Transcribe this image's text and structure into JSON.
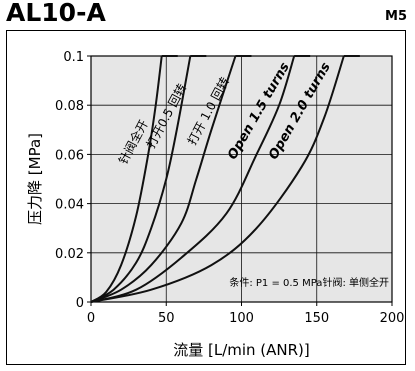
{
  "header": {
    "title": "AL10-A",
    "code": "M5"
  },
  "chart_data": {
    "type": "line",
    "xlabel": "流量 [L/min (ANR)]",
    "ylabel": "压力降 [MPa]",
    "xlim": [
      0,
      200
    ],
    "ylim": [
      0,
      0.1
    ],
    "xticks": [
      0,
      50,
      100,
      150,
      200
    ],
    "yticks": [
      0,
      0.02,
      0.04,
      0.06,
      0.08,
      0.1
    ],
    "xtick_labels": [
      "0",
      "50",
      "100",
      "150",
      "200"
    ],
    "ytick_labels": [
      "0",
      "0.02",
      "0.04",
      "0.06",
      "0.08",
      "0.1"
    ],
    "grid": true,
    "note": "条件: P1 = 0.5 MPa针阀: 单侧全开",
    "series": [
      {
        "name": "针阀全开",
        "points": [
          [
            0,
            0
          ],
          [
            10,
            0.004
          ],
          [
            20,
            0.015
          ],
          [
            30,
            0.035
          ],
          [
            38,
            0.06
          ],
          [
            43,
            0.08
          ],
          [
            47,
            0.1
          ]
        ]
      },
      {
        "name": "打开0.5 回转",
        "points": [
          [
            0,
            0
          ],
          [
            15,
            0.005
          ],
          [
            30,
            0.016
          ],
          [
            40,
            0.03
          ],
          [
            50,
            0.05
          ],
          [
            57,
            0.07
          ],
          [
            66,
            0.1
          ]
        ]
      },
      {
        "name": "打开 1.0 回转",
        "points": [
          [
            0,
            0
          ],
          [
            20,
            0.005
          ],
          [
            40,
            0.015
          ],
          [
            60,
            0.032
          ],
          [
            70,
            0.05
          ],
          [
            80,
            0.07
          ],
          [
            96,
            0.1
          ]
        ]
      },
      {
        "name": "Open 1.5 turns",
        "points": [
          [
            0,
            0
          ],
          [
            30,
            0.005
          ],
          [
            60,
            0.018
          ],
          [
            90,
            0.036
          ],
          [
            110,
            0.06
          ],
          [
            125,
            0.08
          ],
          [
            135,
            0.1
          ]
        ]
      },
      {
        "name": "Open 2.0 turns",
        "points": [
          [
            0,
            0
          ],
          [
            40,
            0.005
          ],
          [
            80,
            0.015
          ],
          [
            110,
            0.03
          ],
          [
            140,
            0.055
          ],
          [
            155,
            0.075
          ],
          [
            168,
            0.1
          ]
        ]
      }
    ],
    "style": {
      "line_color": "#111111",
      "background": "#e6e6e6",
      "grid_color": "#111111"
    }
  }
}
